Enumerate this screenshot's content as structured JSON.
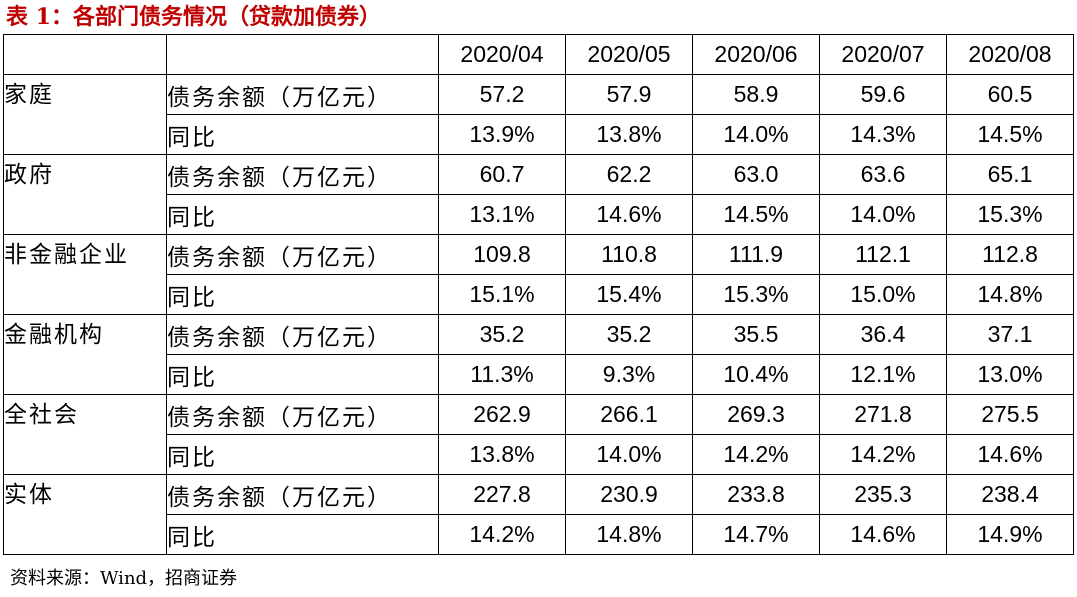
{
  "title": "表 1：各部门债务情况（贷款加债券）",
  "table": {
    "months": [
      "2020/04",
      "2020/05",
      "2020/06",
      "2020/07",
      "2020/08"
    ],
    "sectors": [
      {
        "name": "家庭",
        "rows": [
          {
            "metric": "债务余额（万亿元）",
            "values": [
              "57.2",
              "57.9",
              "58.9",
              "59.6",
              "60.5"
            ]
          },
          {
            "metric": "同比",
            "values": [
              "13.9%",
              "13.8%",
              "14.0%",
              "14.3%",
              "14.5%"
            ]
          }
        ]
      },
      {
        "name": "政府",
        "rows": [
          {
            "metric": "债务余额（万亿元）",
            "values": [
              "60.7",
              "62.2",
              "63.0",
              "63.6",
              "65.1"
            ]
          },
          {
            "metric": "同比",
            "values": [
              "13.1%",
              "14.6%",
              "14.5%",
              "14.0%",
              "15.3%"
            ]
          }
        ]
      },
      {
        "name": "非金融企业",
        "rows": [
          {
            "metric": "债务余额（万亿元）",
            "values": [
              "109.8",
              "110.8",
              "111.9",
              "112.1",
              "112.8"
            ]
          },
          {
            "metric": "同比",
            "values": [
              "15.1%",
              "15.4%",
              "15.3%",
              "15.0%",
              "14.8%"
            ]
          }
        ]
      },
      {
        "name": "金融机构",
        "rows": [
          {
            "metric": "债务余额（万亿元）",
            "values": [
              "35.2",
              "35.2",
              "35.5",
              "36.4",
              "37.1"
            ]
          },
          {
            "metric": "同比",
            "values": [
              "11.3%",
              "9.3%",
              "10.4%",
              "12.1%",
              "13.0%"
            ]
          }
        ]
      },
      {
        "name": "全社会",
        "rows": [
          {
            "metric": "债务余额（万亿元）",
            "values": [
              "262.9",
              "266.1",
              "269.3",
              "271.8",
              "275.5"
            ]
          },
          {
            "metric": "同比",
            "values": [
              "13.8%",
              "14.0%",
              "14.2%",
              "14.2%",
              "14.6%"
            ]
          }
        ]
      },
      {
        "name": "实体",
        "rows": [
          {
            "metric": "债务余额（万亿元）",
            "values": [
              "227.8",
              "230.9",
              "233.8",
              "235.3",
              "238.4"
            ]
          },
          {
            "metric": "同比",
            "values": [
              "14.2%",
              "14.8%",
              "14.7%",
              "14.6%",
              "14.9%"
            ]
          }
        ]
      }
    ]
  },
  "source": "资料来源：Wind，招商证券"
}
